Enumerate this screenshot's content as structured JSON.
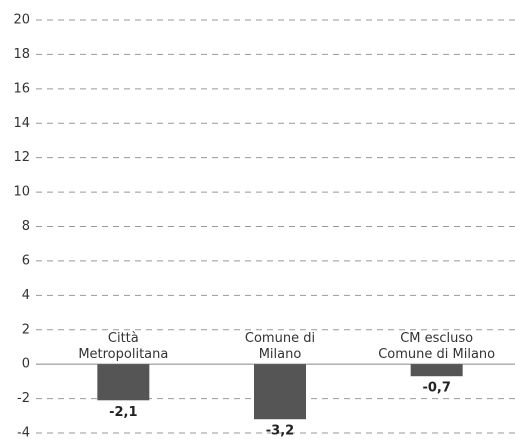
{
  "chart_data": {
    "type": "bar",
    "categories": [
      "Città\nMetropolitana",
      "Comune di\nMilano",
      "CM escluso\nComune di Milano"
    ],
    "values": [
      -2.1,
      -3.2,
      -0.7
    ],
    "value_labels": [
      "-2,1",
      "-3,2",
      "-0,7"
    ],
    "color": "#555555",
    "ylim": [
      -4,
      20
    ],
    "yticks": [
      -4,
      -2,
      0,
      2,
      4,
      6,
      8,
      10,
      12,
      14,
      16,
      18,
      20
    ],
    "grid": true
  }
}
